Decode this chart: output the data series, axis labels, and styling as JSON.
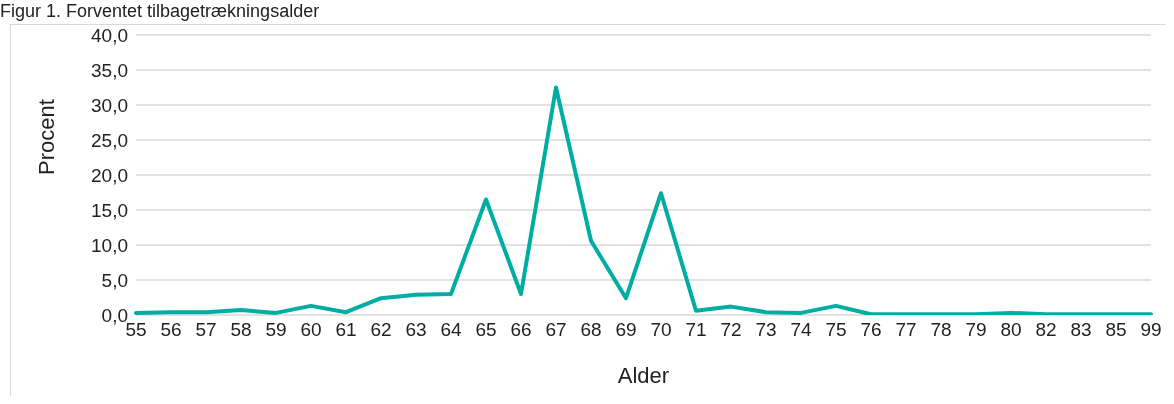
{
  "chart_data": {
    "type": "line",
    "title": "Figur 1. Forventet tilbagetrækningsalder",
    "xlabel": "Alder",
    "ylabel": "Procent",
    "categories": [
      "55",
      "56",
      "57",
      "58",
      "59",
      "60",
      "61",
      "62",
      "63",
      "64",
      "65",
      "66",
      "67",
      "68",
      "69",
      "70",
      "71",
      "72",
      "73",
      "74",
      "75",
      "76",
      "77",
      "78",
      "79",
      "80",
      "82",
      "83",
      "85",
      "99"
    ],
    "series": [
      {
        "color": "#00ada3",
        "values": [
          0.3,
          0.4,
          0.4,
          0.7,
          0.3,
          1.3,
          0.4,
          2.4,
          2.9,
          3.0,
          16.5,
          3.0,
          32.5,
          10.6,
          2.4,
          17.4,
          0.6,
          1.2,
          0.4,
          0.3,
          1.3,
          0.1,
          0.1,
          0.1,
          0.1,
          0.3,
          0.1,
          0.1,
          0.1,
          0.1
        ]
      }
    ],
    "ylim": [
      0,
      40
    ],
    "yticks": [
      {
        "value": 0,
        "label": "0,0"
      },
      {
        "value": 5,
        "label": "5,0"
      },
      {
        "value": 10,
        "label": "10,0"
      },
      {
        "value": 15,
        "label": "15,0"
      },
      {
        "value": 20,
        "label": "20,0"
      },
      {
        "value": 25,
        "label": "25,0"
      },
      {
        "value": 30,
        "label": "30,0"
      },
      {
        "value": 35,
        "label": "35,0"
      },
      {
        "value": 40,
        "label": "40,0"
      }
    ],
    "grid": "y",
    "legend": false,
    "marker": "none",
    "line_style": "solid"
  }
}
